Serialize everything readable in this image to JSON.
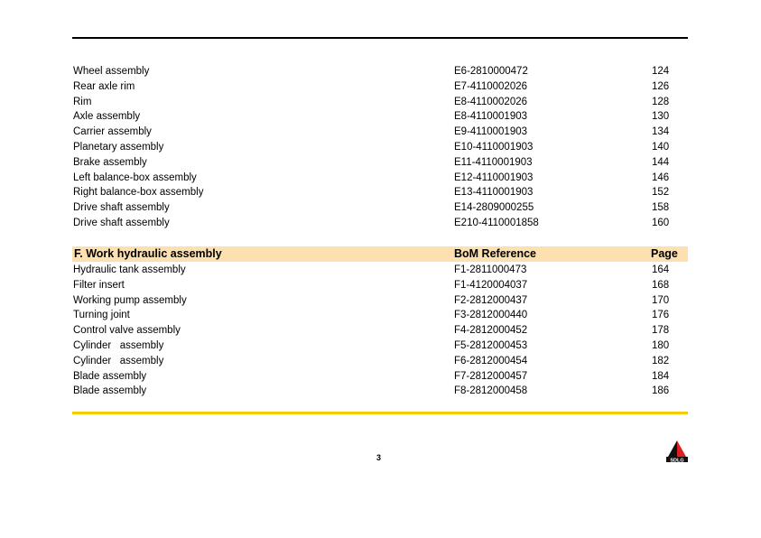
{
  "section_e_rows": [
    [
      "Wheel assembly",
      "E6-2810000472",
      "124"
    ],
    [
      "Rear axle rim",
      "E7-4110002026",
      "126"
    ],
    [
      "Rim",
      "E8-4110002026",
      "128"
    ],
    [
      "Axle assembly",
      "E8-4110001903",
      "130"
    ],
    [
      "Carrier assembly",
      "E9-4110001903",
      "134"
    ],
    [
      "Planetary assembly",
      "E10-4110001903",
      "140"
    ],
    [
      "Brake assembly",
      "E11-4110001903",
      "144"
    ],
    [
      "Left balance-box assembly",
      "E12-4110001903",
      "146"
    ],
    [
      "Right balance-box assembly",
      "E13-4110001903",
      "152"
    ],
    [
      "Drive shaft assembly",
      "E14-2809000255",
      "158"
    ],
    [
      "Drive shaft assembly",
      "E210-4110001858",
      "160"
    ]
  ],
  "section_f": {
    "title": "F.   Work hydraulic assembly",
    "col_ref": "BoM Reference",
    "col_page": "Page",
    "rows": [
      [
        "Hydraulic tank assembly",
        "F1-2811000473",
        "164"
      ],
      [
        "Filter insert",
        "F1-4120004037",
        "168"
      ],
      [
        "Working pump assembly",
        "F2-2812000437",
        "170"
      ],
      [
        "Turning joint",
        "F3-2812000440",
        "176"
      ],
      [
        "Control valve assembly",
        "F4-2812000452",
        "178"
      ],
      [
        "Cylinder   assembly",
        "F5-2812000453",
        "180"
      ],
      [
        "Cylinder   assembly",
        "F6-2812000454",
        "182"
      ],
      [
        "Blade assembly",
        "F7-2812000457",
        "184"
      ],
      [
        "Blade assembly",
        "F8-2812000458",
        "186"
      ]
    ]
  },
  "footer": {
    "page_number": "3",
    "logo_text": "SDLG"
  },
  "colors": {
    "header_band": "#fde0b0",
    "footer_rule": "#f7cc00",
    "logo_red": "#e02020"
  }
}
